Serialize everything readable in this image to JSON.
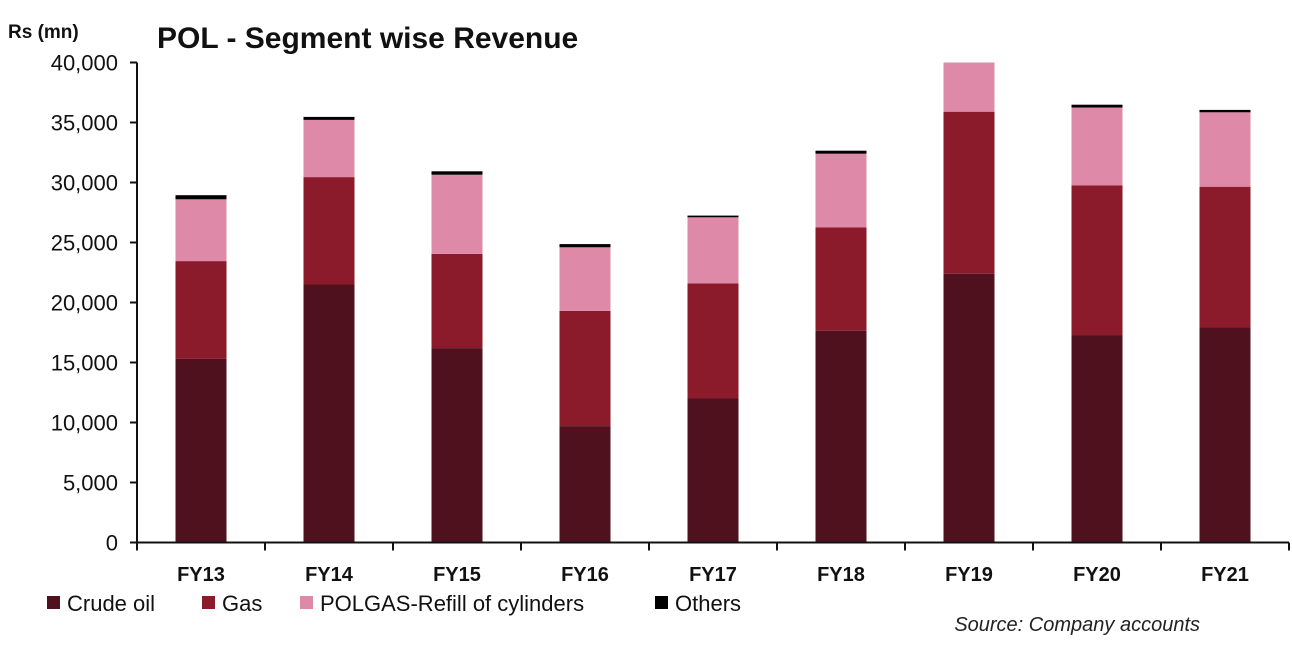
{
  "chart_data": {
    "type": "bar",
    "stacked": true,
    "title": "POL - Segment wise Revenue",
    "ylabel": "Rs (mn)",
    "xlabel": "",
    "ylim": [
      0,
      40000
    ],
    "yticks": [
      0,
      5000,
      10000,
      15000,
      20000,
      25000,
      30000,
      35000,
      40000
    ],
    "ytick_labels": [
      "0",
      "5,000",
      "10,000",
      "15,000",
      "20,000",
      "25,000",
      "30,000",
      "35,000",
      "40,000"
    ],
    "grid": false,
    "categories": [
      "FY13",
      "FY14",
      "FY15",
      "FY16",
      "FY17",
      "FY18",
      "FY19",
      "FY20",
      "FY21"
    ],
    "series": [
      {
        "name": "Crude oil",
        "color": "#4f111e",
        "values": [
          15300,
          21500,
          16200,
          9700,
          12000,
          17650,
          22400,
          17250,
          17950
        ]
      },
      {
        "name": "Gas",
        "color": "#8b1a2b",
        "values": [
          8150,
          8950,
          7850,
          9600,
          9600,
          8600,
          13500,
          12500,
          11700
        ]
      },
      {
        "name": "POLGAS-Refill of cylinders",
        "color": "#de89a7",
        "values": [
          5150,
          4770,
          6600,
          5300,
          5500,
          6150,
          4100,
          6500,
          6200
        ]
      },
      {
        "name": "Others",
        "color": "#000000",
        "values": [
          340,
          250,
          280,
          270,
          140,
          250,
          0,
          230,
          200
        ]
      }
    ],
    "legend_position": "bottom-left",
    "annotations": [
      "Source: Company accounts"
    ]
  }
}
